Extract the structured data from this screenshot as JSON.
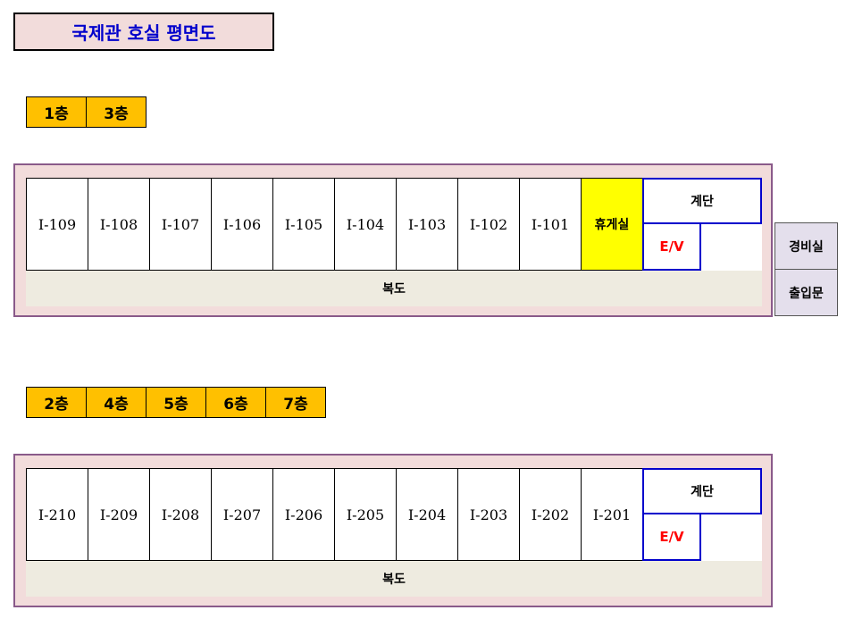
{
  "title": "국제관 호실 평면도",
  "colors": {
    "title_bg": "#f2dcdb",
    "title_text": "#0000cc",
    "floor_tab_bg": "#ffc000",
    "frame_bg": "#f2dcdb",
    "lounge_bg": "#ffff00",
    "stairs_border": "#0000cc",
    "ev_text": "#ff0000",
    "corridor_bg": "#eeebe0",
    "side_bg": "#e4dfec"
  },
  "plan1": {
    "floors": [
      "1층",
      "3층"
    ],
    "rooms": [
      "I-109",
      "I-108",
      "I-107",
      "I-106",
      "I-105",
      "I-104",
      "I-103",
      "I-102",
      "I-101"
    ],
    "lounge": "휴게실",
    "stairs": "계단",
    "ev": "E/V",
    "corridor": "복도",
    "guard_room": "경비실",
    "entrance": "출입문"
  },
  "plan2": {
    "floors": [
      "2층",
      "4층",
      "5층",
      "6층",
      "7층"
    ],
    "rooms": [
      "I-210",
      "I-209",
      "I-208",
      "I-207",
      "I-206",
      "I-205",
      "I-204",
      "I-203",
      "I-202",
      "I-201"
    ],
    "stairs": "계단",
    "ev": "E/V",
    "corridor": "복도"
  }
}
